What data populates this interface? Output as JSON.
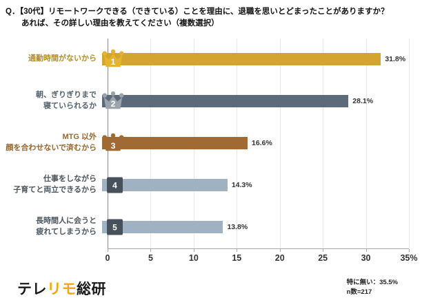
{
  "title": {
    "line1": "Q．【30代】リモートワークできる（できている）ことを理由に、退職を思いとどまったことがありますか？",
    "line2": "あれば、その詳しい理由を教えてください（複数選択）"
  },
  "chart_data": {
    "type": "bar",
    "orientation": "horizontal",
    "categories": [
      "通勤時間がないから",
      "朝、ぎりぎりまで\n寝ていられるか",
      "MTG 以外\n顔を合わせないで済むから",
      "仕事をしながら\n子育てと両立できるから",
      "長時間人に会うと\n疲れてしまうから"
    ],
    "values": [
      31.8,
      28.1,
      16.6,
      14.3,
      13.8
    ],
    "value_labels": [
      "31.8%",
      "28.1%",
      "16.6%",
      "14.3%",
      "13.8%"
    ],
    "ranks": [
      "1",
      "2",
      "3",
      "4",
      "5"
    ],
    "badge_types": [
      "crown",
      "crown",
      "crown",
      "square",
      "square"
    ],
    "bar_colors": [
      "#D2A62E",
      "#5B6B7B",
      "#9F6A33",
      "#A0B2C2",
      "#A0B2C2"
    ],
    "label_colors": [
      "#B28D28",
      "#55626F",
      "#96672F",
      "#4A545E",
      "#4A545E"
    ],
    "badge_colors": [
      "#E3B42C",
      "#9BA3AB",
      "#9F6A33",
      "#47515C",
      "#47515C"
    ],
    "xlim": [
      0,
      35
    ],
    "xticks": [
      0,
      5,
      10,
      15,
      20,
      25,
      30,
      35
    ],
    "xtick_labels": [
      "0",
      "5",
      "10",
      "15",
      "20",
      "25",
      "30",
      "35%"
    ],
    "grid": "vertical",
    "legend": "none"
  },
  "footer": {
    "logo_text_1": "テレ",
    "logo_text_2": "リモ",
    "logo_text_3": "総研",
    "logo_accent_color": "#F2A70C",
    "note_line1": "特に無い：35.5%",
    "note_line2": "n数=217"
  }
}
